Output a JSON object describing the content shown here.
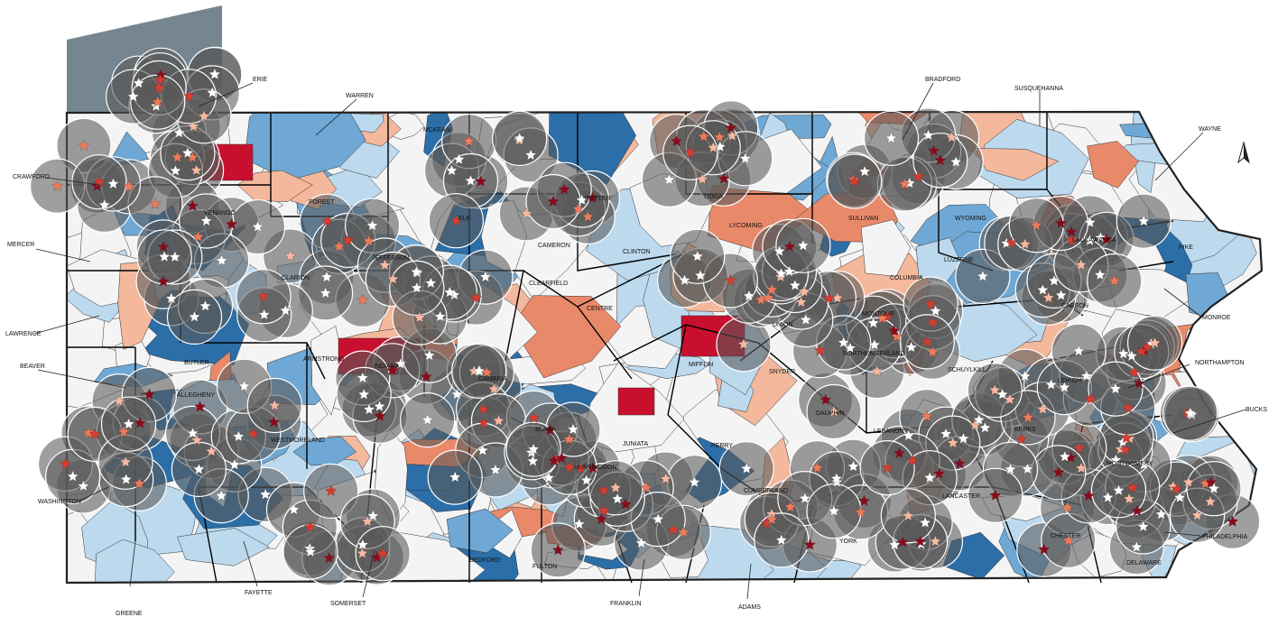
{
  "colors": {
    "blue_dark": "#2b6ea8",
    "blue_mid": "#6fa8d4",
    "blue_light": "#bcd9ee",
    "neutral": "#f4f4f4",
    "orange_light": "#f4b89c",
    "orange_mid": "#e8896a",
    "red_dark": "#c8102e",
    "buffer_gray": "#5a5a5a",
    "star_white": "#ffffff",
    "star_light": "#f7b9a1",
    "star_orange": "#f07a5a",
    "star_red": "#d93b2f",
    "star_darkred": "#8b0a1a",
    "lake": "#6f7f8a"
  },
  "icons": {
    "north_arrow": "north-arrow-icon",
    "site_marker": "star-icon"
  },
  "counties": [
    {
      "name": "ERIE"
    },
    {
      "name": "WARREN"
    },
    {
      "name": "MCKEAN"
    },
    {
      "name": "BRADFORD"
    },
    {
      "name": "SUSQUEHANNA"
    },
    {
      "name": "WAYNE"
    },
    {
      "name": "CRAWFORD"
    },
    {
      "name": "POTTER"
    },
    {
      "name": "TIOGA"
    },
    {
      "name": "FOREST"
    },
    {
      "name": "VENANGO"
    },
    {
      "name": "ELK"
    },
    {
      "name": "WYOMING"
    },
    {
      "name": "LYCOMING"
    },
    {
      "name": "SULLIVAN"
    },
    {
      "name": "MERCER"
    },
    {
      "name": "CAMERON"
    },
    {
      "name": "CLINTON"
    },
    {
      "name": "LACKAWANNA"
    },
    {
      "name": "PIKE"
    },
    {
      "name": "JEFFERSON"
    },
    {
      "name": "CLARION"
    },
    {
      "name": "LUZERNE"
    },
    {
      "name": "CLEARFIELD"
    },
    {
      "name": "COLUMBIA"
    },
    {
      "name": "LAWRENCE"
    },
    {
      "name": "CENTRE"
    },
    {
      "name": "MONTOUR"
    },
    {
      "name": "CARBON"
    },
    {
      "name": "MONROE"
    },
    {
      "name": "UNION"
    },
    {
      "name": "BUTLER"
    },
    {
      "name": "ARMSTRONG"
    },
    {
      "name": "INDIANA"
    },
    {
      "name": "MIFFLIN"
    },
    {
      "name": "NORTHUMBERLAND"
    },
    {
      "name": "SNYDER"
    },
    {
      "name": "BEAVER"
    },
    {
      "name": "NORTHAMPTON"
    },
    {
      "name": "SCHUYLKILL"
    },
    {
      "name": "ALLEGHENY"
    },
    {
      "name": "CAMBRIA"
    },
    {
      "name": "LEHIGH"
    },
    {
      "name": "BUCKS"
    },
    {
      "name": "BLAIR"
    },
    {
      "name": "BERKS"
    },
    {
      "name": "WESTMORELAND"
    },
    {
      "name": "LEBANON"
    },
    {
      "name": "DAUPHIN"
    },
    {
      "name": "JUNIATA"
    },
    {
      "name": "PERRY"
    },
    {
      "name": "MONTGOMERY"
    },
    {
      "name": "HUNTINGDON"
    },
    {
      "name": "WASHINGTON"
    },
    {
      "name": "CUMBERLAND"
    },
    {
      "name": "LANCASTER"
    },
    {
      "name": "CHESTER"
    },
    {
      "name": "PHILADELPHIA"
    },
    {
      "name": "YORK"
    },
    {
      "name": "BEDFORD"
    },
    {
      "name": "FULTON"
    },
    {
      "name": "FAYETTE"
    },
    {
      "name": "DELAWARE"
    },
    {
      "name": "FRANKLIN"
    },
    {
      "name": "SOMERSET"
    },
    {
      "name": "GREENE"
    },
    {
      "name": "ADAMS"
    }
  ]
}
